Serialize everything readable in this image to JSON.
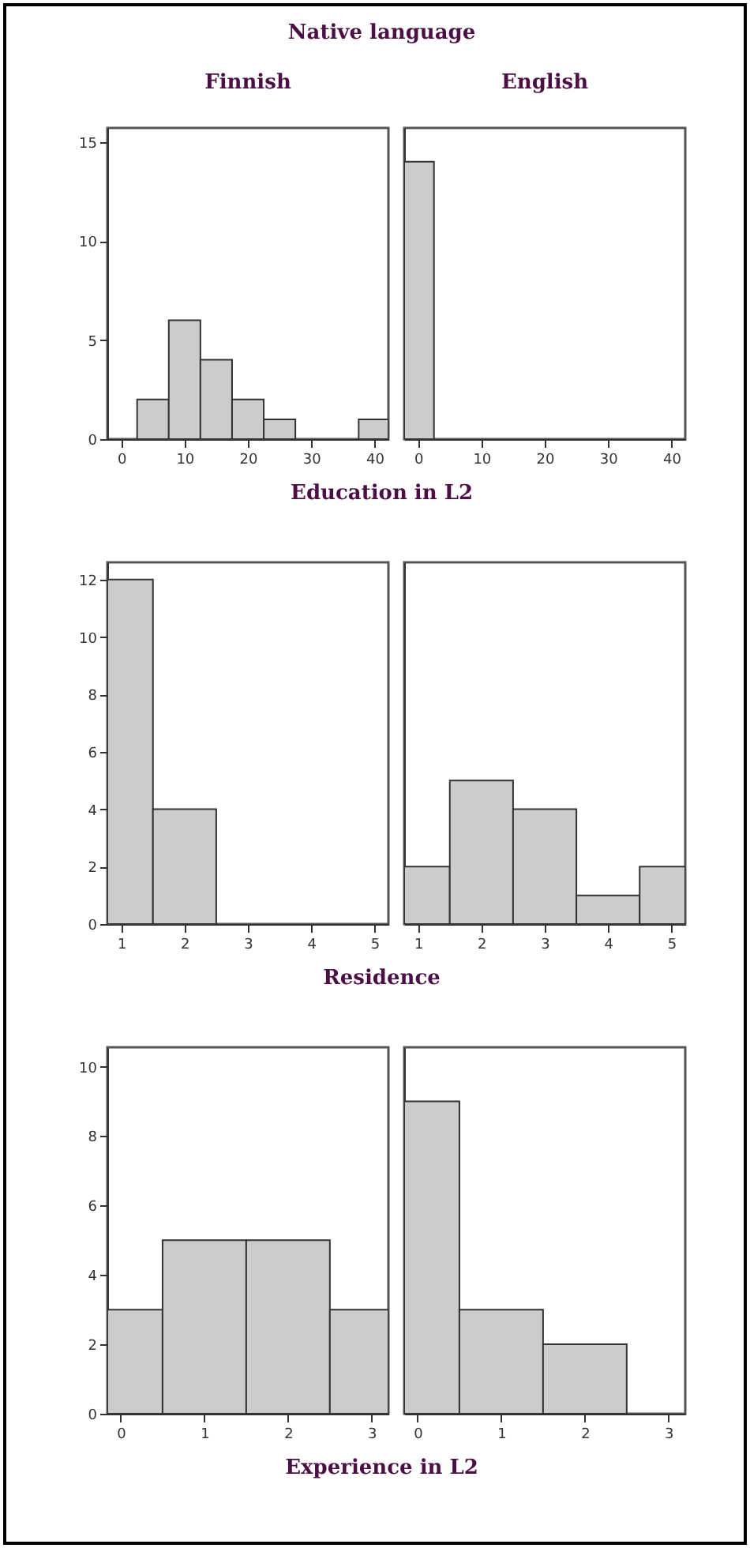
{
  "chart_data": [
    {
      "type": "histogram",
      "title": "Finnish",
      "annotations": [
        "Native language"
      ],
      "xlabel": "Education in L2",
      "bins": [
        2.5,
        7.5,
        12.5,
        17.5,
        22.5,
        27.5,
        37.5,
        42.2
      ],
      "values": [
        2,
        6,
        4,
        2,
        1,
        0,
        1
      ],
      "color": "#cccccc",
      "xlim": [
        -2.2,
        42.2
      ],
      "xticks": [
        0,
        10,
        20,
        30,
        40
      ],
      "ylim": [
        0,
        15.7
      ],
      "yticks": [
        0,
        5,
        10,
        15
      ],
      "grid": false
    },
    {
      "type": "histogram",
      "title": "English",
      "bins": [
        -2.2,
        2.5
      ],
      "values": [
        14
      ],
      "color": "#cccccc",
      "xlim": [
        -2.2,
        42.2
      ],
      "xticks": [
        0,
        10,
        20,
        30,
        40
      ],
      "ylim": [
        0,
        15.7
      ],
      "yticks": [
        0,
        5,
        10,
        15
      ],
      "grid": false,
      "tick_labels": "x"
    },
    {
      "type": "histogram",
      "xlabel": "Residence",
      "bins": [
        0.78,
        1.5,
        2.5
      ],
      "values": [
        12,
        4
      ],
      "color": "#cccccc",
      "xlim": [
        0.78,
        5.22
      ],
      "xticks": [
        1,
        2,
        3,
        4,
        5
      ],
      "ylim": [
        0,
        12.6
      ],
      "yticks": [
        0,
        2,
        4,
        6,
        8,
        10,
        12
      ],
      "grid": false
    },
    {
      "type": "histogram",
      "bins": [
        0.78,
        1.5,
        2.5,
        3.5,
        4.5,
        5.22
      ],
      "values": [
        2,
        5,
        4,
        1,
        2
      ],
      "color": "#cccccc",
      "xlim": [
        0.78,
        5.22
      ],
      "xticks": [
        1,
        2,
        3,
        4,
        5
      ],
      "ylim": [
        0,
        12.6
      ],
      "yticks": [
        0,
        2,
        4,
        6,
        8,
        10,
        12
      ],
      "grid": false,
      "tick_labels": "x"
    },
    {
      "type": "histogram",
      "xlabel": "Experience in L2",
      "bins": [
        -0.16,
        0.5,
        1.5,
        2.5,
        3.2
      ],
      "values": [
        3,
        5,
        5,
        3
      ],
      "color": "#cccccc",
      "xlim": [
        -0.16,
        3.2
      ],
      "xticks": [
        0,
        1,
        2,
        3
      ],
      "ylim": [
        0,
        10.56
      ],
      "yticks": [
        0,
        2,
        4,
        6,
        8,
        10
      ],
      "grid": false
    },
    {
      "type": "histogram",
      "bins": [
        -0.16,
        0.5,
        1.5,
        2.5
      ],
      "values": [
        9,
        3,
        2
      ],
      "color": "#cccccc",
      "xlim": [
        -0.16,
        3.2
      ],
      "xticks": [
        0,
        1,
        2,
        3
      ],
      "ylim": [
        0,
        10.56
      ],
      "yticks": [
        0,
        2,
        4,
        6,
        8,
        10
      ],
      "grid": false,
      "tick_labels": "x"
    }
  ]
}
